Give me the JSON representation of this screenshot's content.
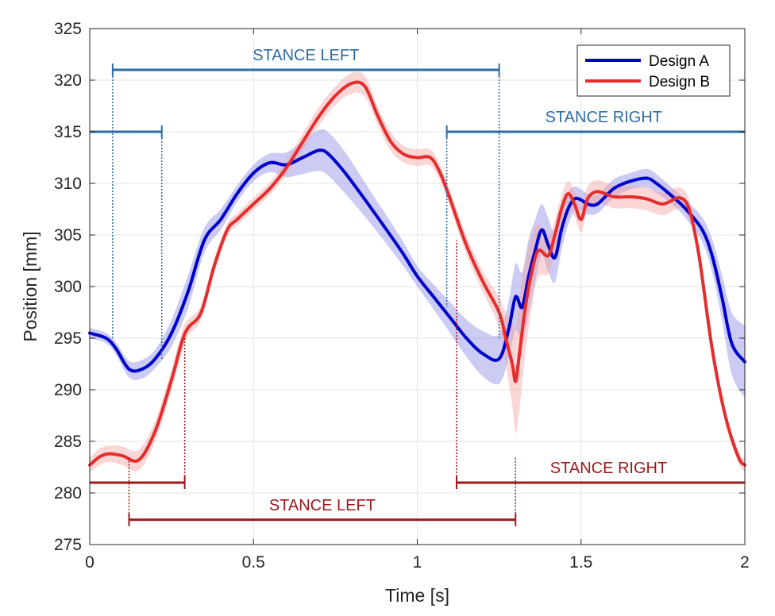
{
  "chart_data": {
    "type": "line",
    "title": "",
    "xlabel": "Time [s]",
    "ylabel": "Position [mm]",
    "xlim": [
      0,
      2
    ],
    "ylim": [
      275,
      325
    ],
    "xticks": [
      0,
      0.5,
      1,
      1.5,
      2
    ],
    "xtick_labels": [
      "0",
      "0.5",
      "1",
      "1.5",
      "2"
    ],
    "yticks": [
      275,
      280,
      285,
      290,
      295,
      300,
      305,
      310,
      315,
      320,
      325
    ],
    "ytick_labels": [
      "275",
      "280",
      "285",
      "290",
      "295",
      "300",
      "305",
      "310",
      "315",
      "320",
      "325"
    ],
    "grid": true,
    "legend_position": "top-right",
    "series": [
      {
        "name": "Design A",
        "color": "#0000cc",
        "band_color": "#8c8ce6",
        "x": [
          0,
          0.05,
          0.08,
          0.12,
          0.16,
          0.2,
          0.25,
          0.3,
          0.35,
          0.4,
          0.45,
          0.5,
          0.55,
          0.6,
          0.65,
          0.7,
          0.73,
          0.78,
          0.85,
          0.95,
          1.0,
          1.05,
          1.1,
          1.15,
          1.2,
          1.25,
          1.28,
          1.3,
          1.32,
          1.34,
          1.36,
          1.38,
          1.4,
          1.42,
          1.44,
          1.46,
          1.48,
          1.5,
          1.52,
          1.55,
          1.6,
          1.65,
          1.7,
          1.73,
          1.78,
          1.82,
          1.87,
          1.9,
          1.93,
          1.96,
          2.0
        ],
        "values": [
          295.5,
          295.0,
          294.0,
          292.0,
          292.0,
          293.0,
          295.5,
          299.5,
          304.5,
          306.5,
          309.0,
          311.0,
          312.0,
          311.8,
          312.5,
          313.2,
          312.8,
          311.0,
          308.0,
          303.5,
          301.0,
          299.0,
          297.0,
          295.0,
          293.5,
          293.0,
          296.0,
          299.0,
          298.0,
          301.0,
          303.5,
          305.5,
          304.0,
          302.8,
          305.5,
          307.5,
          308.5,
          308.4,
          308.0,
          308.0,
          309.5,
          310.2,
          310.5,
          310.0,
          308.7,
          307.5,
          305.5,
          303.0,
          299.0,
          294.5,
          292.7
        ],
        "band_halfwidth": [
          0.5,
          0.5,
          0.6,
          0.8,
          0.9,
          0.9,
          1.3,
          1.6,
          1.2,
          1.0,
          0.8,
          0.8,
          0.9,
          1.2,
          1.6,
          2.0,
          2.1,
          2.0,
          1.6,
          1.2,
          1.0,
          1.2,
          1.5,
          1.8,
          2.2,
          2.4,
          2.8,
          3.2,
          3.4,
          3.6,
          3.0,
          2.5,
          2.6,
          2.4,
          2.0,
          1.6,
          1.2,
          1.0,
          1.0,
          0.9,
          0.9,
          0.8,
          0.9,
          0.9,
          0.8,
          0.9,
          1.2,
          1.6,
          2.2,
          3.0,
          3.5
        ]
      },
      {
        "name": "Design B",
        "color": "#e52d2d",
        "band_color": "#f4a3a3",
        "x": [
          0,
          0.03,
          0.06,
          0.1,
          0.15,
          0.2,
          0.25,
          0.28,
          0.3,
          0.34,
          0.38,
          0.42,
          0.45,
          0.5,
          0.55,
          0.6,
          0.65,
          0.7,
          0.75,
          0.8,
          0.84,
          0.88,
          0.92,
          0.96,
          1.0,
          1.04,
          1.07,
          1.1,
          1.15,
          1.2,
          1.25,
          1.27,
          1.29,
          1.3,
          1.31,
          1.33,
          1.35,
          1.37,
          1.4,
          1.42,
          1.44,
          1.46,
          1.48,
          1.5,
          1.52,
          1.55,
          1.6,
          1.65,
          1.7,
          1.75,
          1.8,
          1.83,
          1.86,
          1.9,
          1.94,
          1.98,
          2.0
        ],
        "values": [
          282.7,
          283.5,
          283.8,
          283.6,
          283.2,
          286.0,
          291.0,
          294.5,
          296.0,
          297.5,
          302.0,
          305.5,
          306.5,
          308.0,
          309.5,
          311.5,
          314.0,
          316.5,
          318.5,
          319.7,
          319.4,
          316.5,
          314.0,
          312.8,
          312.5,
          312.5,
          311.0,
          308.5,
          304.0,
          300.5,
          297.5,
          295.0,
          292.5,
          290.8,
          293.0,
          298.0,
          301.5,
          303.5,
          303.0,
          305.0,
          307.5,
          309.0,
          308.0,
          306.5,
          308.5,
          309.2,
          308.7,
          308.7,
          308.5,
          308.0,
          308.6,
          307.5,
          303.0,
          294.0,
          287.5,
          283.5,
          282.7
        ],
        "band_halfwidth": [
          0.7,
          0.8,
          0.8,
          0.9,
          1.0,
          1.0,
          1.0,
          1.0,
          0.8,
          0.7,
          0.7,
          0.6,
          0.6,
          0.6,
          0.6,
          0.7,
          0.8,
          0.9,
          0.9,
          1.0,
          1.0,
          0.9,
          0.9,
          0.8,
          0.8,
          0.8,
          0.8,
          0.8,
          0.9,
          1.0,
          1.5,
          2.5,
          4.0,
          5.0,
          5.5,
          4.5,
          3.5,
          2.5,
          1.8,
          1.5,
          1.3,
          1.2,
          1.2,
          1.2,
          1.2,
          1.1,
          1.1,
          1.1,
          1.1,
          1.1,
          1.0,
          0.9,
          0.8,
          0.7,
          0.6,
          0.6,
          0.6
        ]
      }
    ],
    "annotations": [
      {
        "label": "STANCE LEFT",
        "design": "Design A",
        "color": "#2e6ca6",
        "y": 321,
        "x_start": 0.07,
        "x_end": 1.25,
        "guide_to": 295
      },
      {
        "label": "",
        "design": "Design A",
        "color": "#2e6ca6",
        "y": 315,
        "x_start": 0,
        "x_end": 0.22,
        "guide_to": 293
      },
      {
        "label": "STANCE RIGHT",
        "design": "Design A",
        "color": "#2e6ca6",
        "y": 315,
        "x_start": 1.09,
        "x_end": 2,
        "guide_to": 298
      },
      {
        "label": "",
        "design": "Design B",
        "color": "#9b1a1a",
        "y": 281,
        "x_start": 0,
        "x_end": 0.29,
        "guide_to": 295
      },
      {
        "label": "STANCE LEFT",
        "design": "Design B",
        "color": "#9b1a1a",
        "y": 277.4,
        "x_start": 0.12,
        "x_end": 1.3,
        "guide_to": 283.5
      },
      {
        "label": "STANCE RIGHT",
        "design": "Design B",
        "color": "#9b1a1a",
        "y": 281,
        "x_start": 1.12,
        "x_end": 2,
        "guide_to": 304.5
      }
    ]
  }
}
